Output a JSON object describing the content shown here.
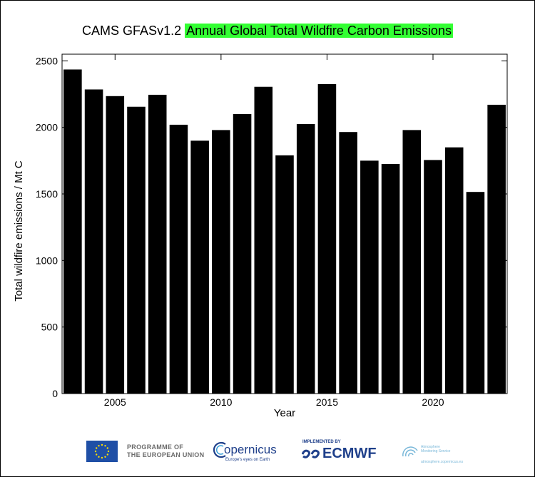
{
  "title": {
    "prefix": "CAMS GFASv1.2",
    "highlight": "Annual Global Total Wildfire Carbon Emissions",
    "highlight_color": "#33ff33"
  },
  "chart_data": {
    "type": "bar",
    "title": "CAMS GFASv1.2 Annual Global Total Wildfire Carbon Emissions",
    "xlabel": "Year",
    "ylabel": "Total wildfire emissions / Mt C",
    "categories": [
      2003,
      2004,
      2005,
      2006,
      2007,
      2008,
      2009,
      2010,
      2011,
      2012,
      2013,
      2014,
      2015,
      2016,
      2017,
      2018,
      2019,
      2020,
      2021,
      2022,
      2023
    ],
    "values": [
      2435,
      2285,
      2235,
      2155,
      2245,
      2020,
      1900,
      1980,
      2100,
      2305,
      1790,
      2025,
      2325,
      1965,
      1750,
      1725,
      1980,
      1755,
      1850,
      1515,
      2170
    ],
    "xlim": [
      2002.5,
      2023.5
    ],
    "ylim": [
      0,
      2550
    ],
    "xticks": [
      2005,
      2010,
      2015,
      2020
    ],
    "yticks": [
      0,
      500,
      1000,
      1500,
      2000,
      2500
    ],
    "bar_color": "#000000",
    "grid": false
  },
  "footer": {
    "eu_line1": "PROGRAMME OF",
    "eu_line2": "THE EUROPEAN UNION",
    "copernicus": "opernicus",
    "copernicus_sub": "Europe's eyes on Earth",
    "implemented_by": "IMPLEMENTED BY",
    "ecmwf": "ECMWF",
    "ams_line1": "Atmosphere",
    "ams_line2": "Monitoring Service",
    "ams_url": "atmosphere.copernicus.eu"
  }
}
